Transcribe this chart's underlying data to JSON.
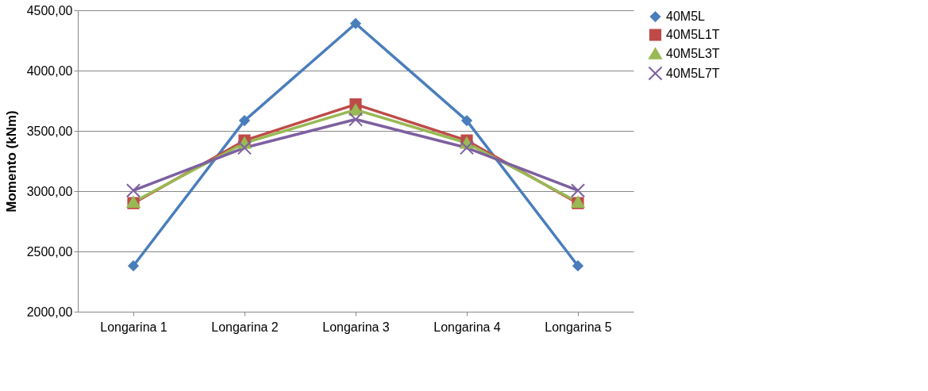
{
  "chart_data": {
    "type": "line",
    "ylabel": "Momento (kNm)",
    "categories": [
      "Longarina 1",
      "Longarina 2",
      "Longarina 3",
      "Longarina 4",
      "Longarina 5"
    ],
    "series": [
      {
        "name": "40M5L",
        "color": "#4a7ebb",
        "marker": "diamond",
        "values": [
          2380,
          3585,
          4390,
          3585,
          2380
        ]
      },
      {
        "name": "40M5L1T",
        "color": "#be4b48",
        "marker": "square",
        "values": [
          2900,
          3420,
          3720,
          3420,
          2900
        ]
      },
      {
        "name": "40M5L3T",
        "color": "#98b954",
        "marker": "triangle",
        "values": [
          2910,
          3400,
          3675,
          3400,
          2910
        ]
      },
      {
        "name": "40M5L7T",
        "color": "#7d60a0",
        "marker": "cross",
        "values": [
          3005,
          3360,
          3595,
          3360,
          3005
        ]
      }
    ],
    "ylim": [
      2000,
      4500
    ],
    "yticks": [
      {
        "value": 2000,
        "label": "2000,00"
      },
      {
        "value": 2500,
        "label": "2500,00"
      },
      {
        "value": 3000,
        "label": "3000,00"
      },
      {
        "value": 3500,
        "label": "3500,00"
      },
      {
        "value": 4000,
        "label": "4000,00"
      },
      {
        "value": 4500,
        "label": "4500,00"
      }
    ],
    "grid": "y",
    "legend": "right",
    "line_style": "solid"
  }
}
